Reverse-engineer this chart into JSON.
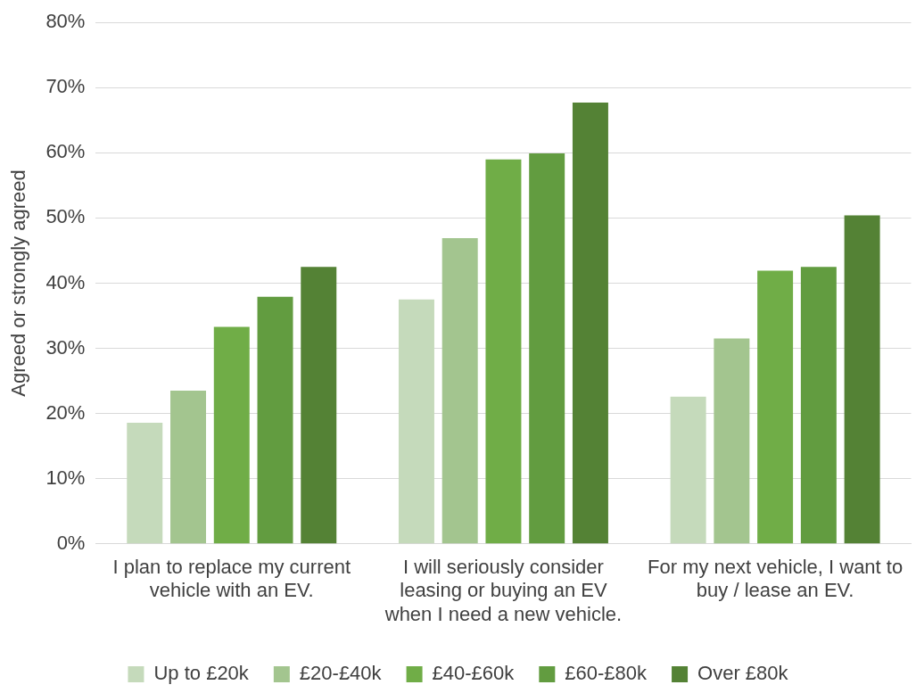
{
  "chart_data": {
    "type": "bar",
    "ylabel": "Agreed or strongly agreed",
    "categories": [
      "I plan to replace my current vehicle with an EV.",
      "I will seriously consider leasing or buying an EV when I need a new vehicle.",
      "For my next vehicle, I want to buy / lease an EV."
    ],
    "series": [
      {
        "name": "Up to £20k",
        "color": "#c5dabb",
        "values": [
          18.6,
          37.5,
          22.6
        ]
      },
      {
        "name": "£20-£40k",
        "color": "#a3c58f",
        "values": [
          23.5,
          46.9,
          31.5
        ]
      },
      {
        "name": "£40-£60k",
        "color": "#70ad47",
        "values": [
          33.3,
          59.0,
          41.9
        ]
      },
      {
        "name": "£60-£80k",
        "color": "#629c40",
        "values": [
          37.9,
          59.9,
          42.5
        ]
      },
      {
        "name": "Over £80k",
        "color": "#548235",
        "values": [
          42.5,
          67.7,
          50.4
        ]
      }
    ],
    "ylim": [
      0,
      80
    ],
    "yticks": [
      {
        "value": 0,
        "label": "0%"
      },
      {
        "value": 10,
        "label": "10%"
      },
      {
        "value": 20,
        "label": "20%"
      },
      {
        "value": 30,
        "label": "30%"
      },
      {
        "value": 40,
        "label": "40%"
      },
      {
        "value": 50,
        "label": "50%"
      },
      {
        "value": 60,
        "label": "60%"
      },
      {
        "value": 70,
        "label": "70%"
      },
      {
        "value": 80,
        "label": "80%"
      }
    ],
    "grid": "y",
    "legend": "bottom"
  }
}
